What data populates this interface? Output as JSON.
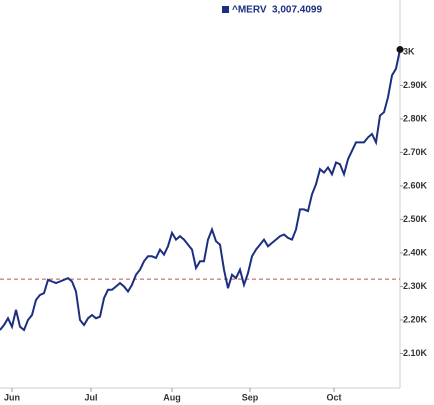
{
  "chart_data": {
    "type": "line",
    "series": [
      {
        "name": "^MERV",
        "color": "#1c2f80",
        "values": [
          2170,
          2185,
          2205,
          2180,
          2230,
          2180,
          2170,
          2200,
          2215,
          2260,
          2275,
          2280,
          2320,
          2315,
          2310,
          2315,
          2320,
          2325,
          2315,
          2285,
          2200,
          2185,
          2205,
          2215,
          2205,
          2210,
          2265,
          2290,
          2290,
          2300,
          2310,
          2300,
          2285,
          2305,
          2335,
          2350,
          2375,
          2390,
          2390,
          2385,
          2410,
          2395,
          2420,
          2460,
          2440,
          2450,
          2440,
          2425,
          2410,
          2355,
          2375,
          2375,
          2440,
          2470,
          2435,
          2425,
          2350,
          2295,
          2335,
          2325,
          2350,
          2305,
          2340,
          2390,
          2410,
          2425,
          2440,
          2420,
          2430,
          2440,
          2450,
          2455,
          2445,
          2440,
          2470,
          2530,
          2530,
          2525,
          2575,
          2605,
          2650,
          2640,
          2655,
          2635,
          2670,
          2665,
          2635,
          2680,
          2705,
          2730,
          2730,
          2730,
          2745,
          2755,
          2730,
          2810,
          2820,
          2865,
          2930,
          2950,
          3007.4099
        ],
        "last_value_label": "3,007.4099"
      }
    ],
    "reference_line": 2322,
    "reference_color": "#c0504d",
    "ylim": [
      1997,
      3155
    ],
    "yticks": [
      {
        "value": 2100,
        "label": "2.10K"
      },
      {
        "value": 2200,
        "label": "2.20K"
      },
      {
        "value": 2300,
        "label": "2.30K"
      },
      {
        "value": 2400,
        "label": "2.40K"
      },
      {
        "value": 2500,
        "label": "2.50K"
      },
      {
        "value": 2600,
        "label": "2.60K"
      },
      {
        "value": 2700,
        "label": "2.70K"
      },
      {
        "value": 2800,
        "label": "2.80K"
      },
      {
        "value": 2900,
        "label": "2.90K"
      },
      {
        "value": 3000,
        "label": "3K"
      }
    ],
    "xticks": [
      {
        "value": 3,
        "label": "Jun"
      },
      {
        "value": 22.75,
        "label": "Jul"
      },
      {
        "value": 43,
        "label": "Aug"
      },
      {
        "value": 62.5,
        "label": "Sep"
      },
      {
        "value": 83.5,
        "label": "Oct"
      }
    ]
  }
}
